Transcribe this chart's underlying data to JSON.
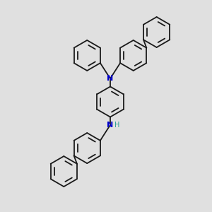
{
  "bg_color": "#e0e0e0",
  "bond_color": "#1a1a1a",
  "N_color": "#0000cc",
  "H_color": "#2a9d8f",
  "bond_width": 1.3,
  "figsize": [
    3.0,
    3.0
  ],
  "dpi": 100,
  "xlim": [
    0.0,
    10.0
  ],
  "ylim": [
    0.0,
    10.0
  ]
}
